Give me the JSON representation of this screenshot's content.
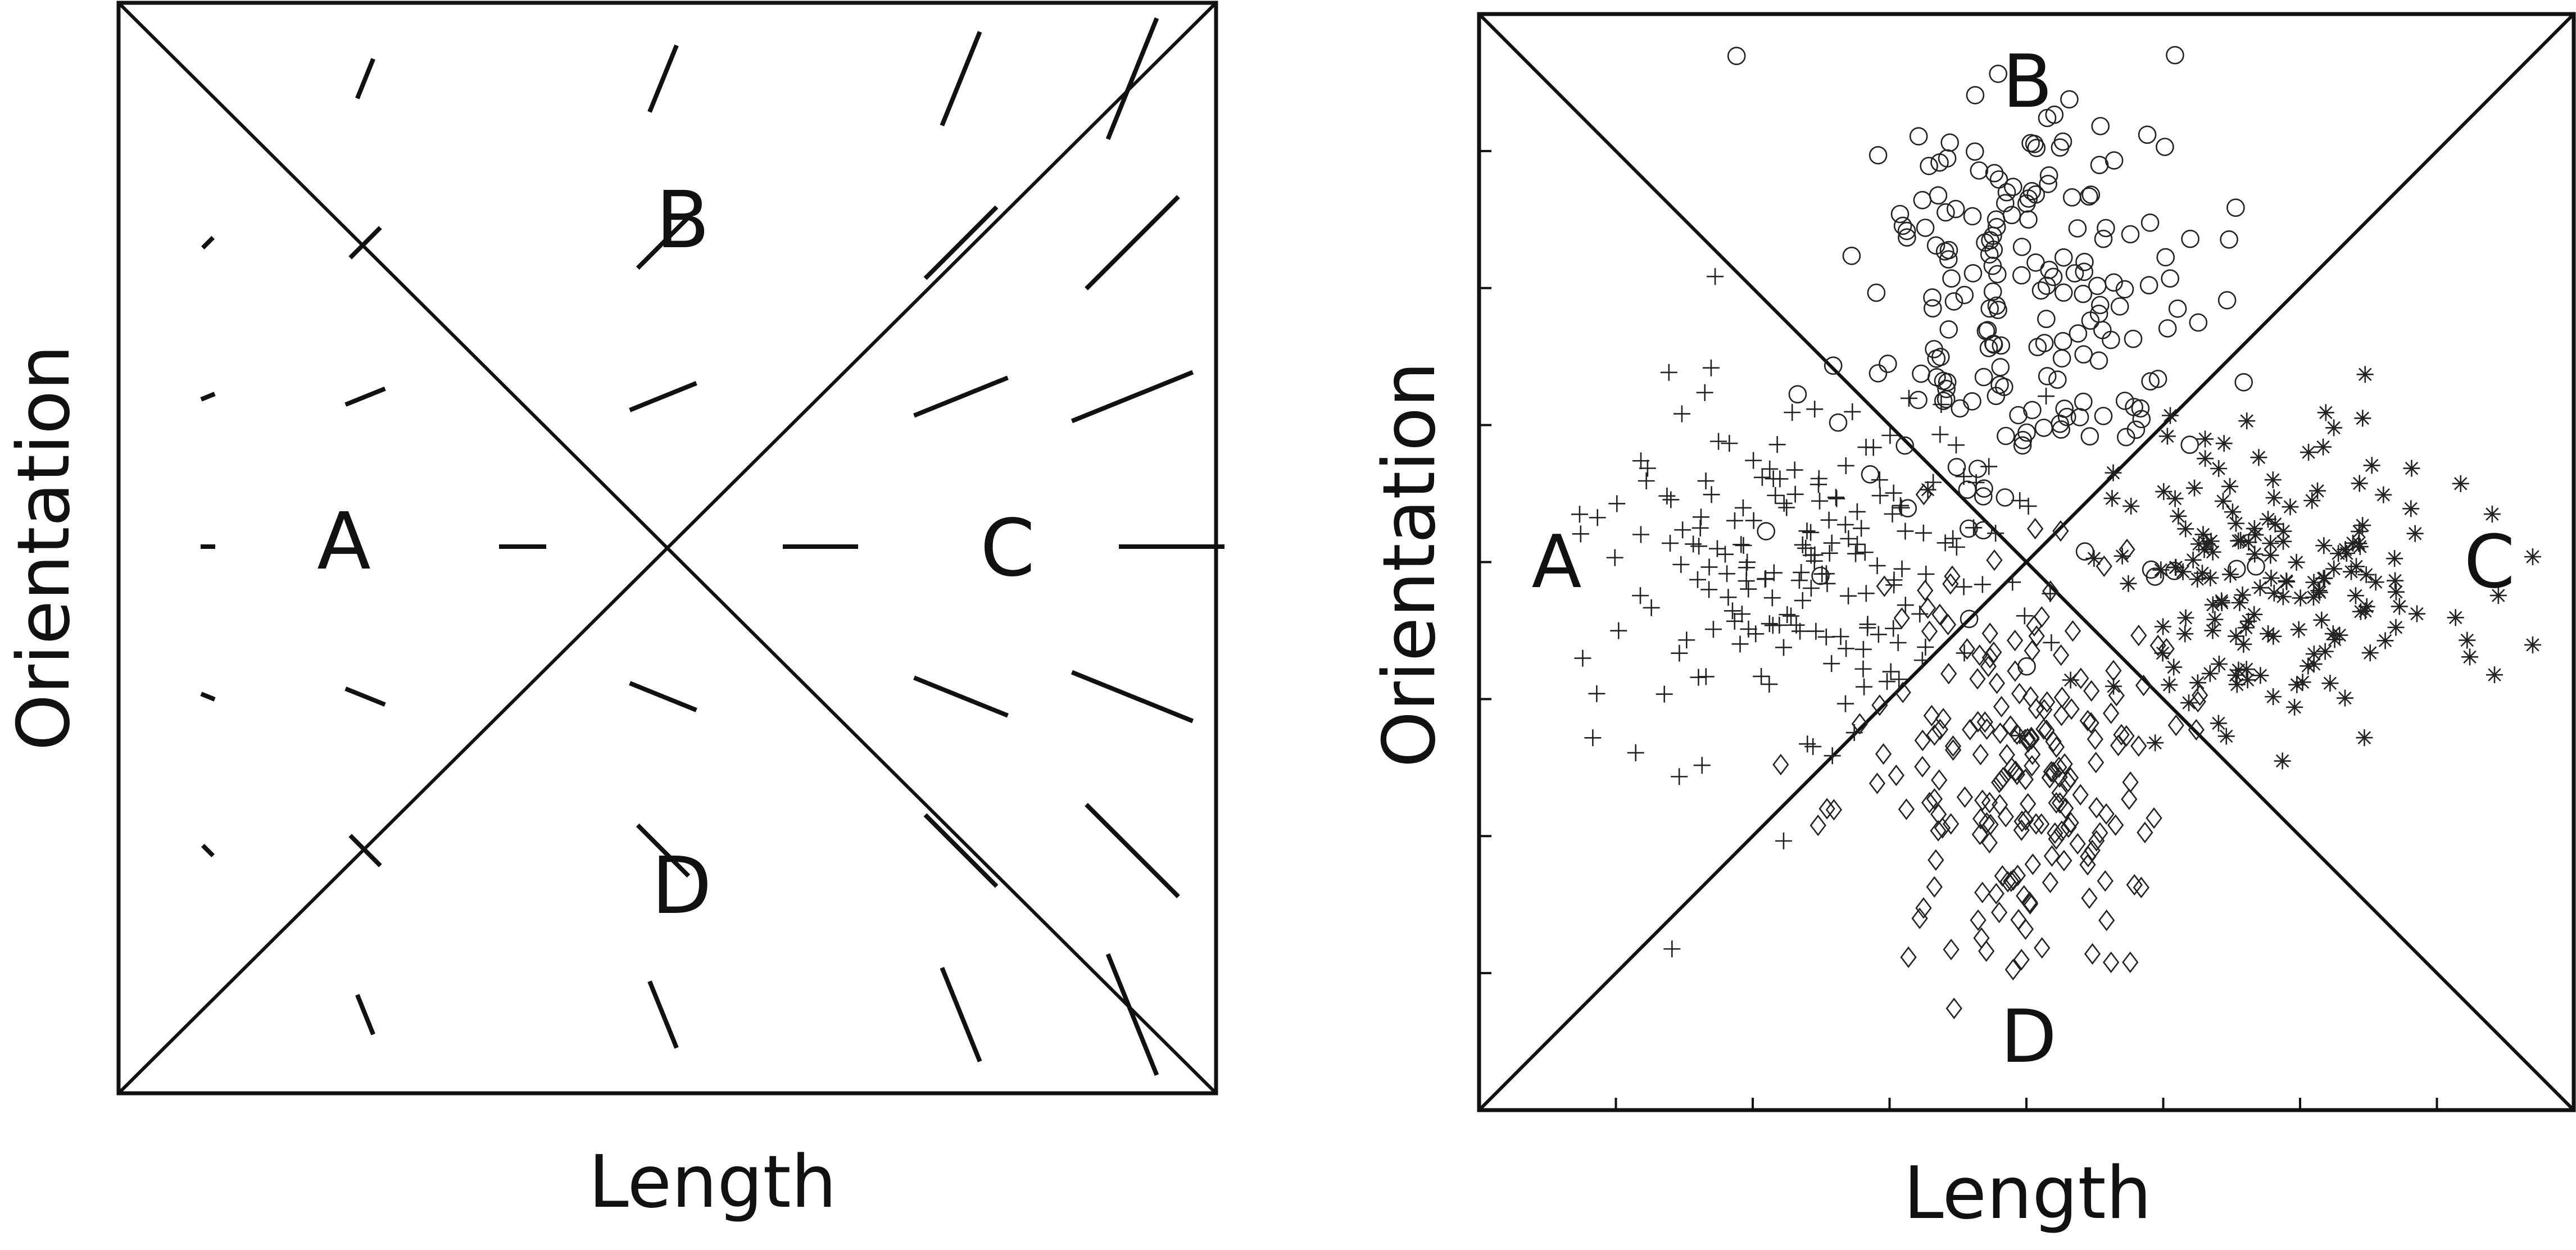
{
  "panels": [
    {
      "id": "left",
      "xlabel": "Length",
      "ylabel": "Orientation",
      "regions": {
        "A": "A",
        "B": "B",
        "C": "C",
        "D": "D"
      }
    },
    {
      "id": "right",
      "xlabel": "Length",
      "ylabel": "Orientation",
      "regions": {
        "A": "A",
        "B": "B",
        "C": "C",
        "D": "D"
      }
    }
  ],
  "chart_data": {
    "type": "scatter",
    "title": "",
    "xlabel": "Length",
    "ylabel": "Orientation",
    "xlim": [
      0,
      8
    ],
    "ylim": [
      0,
      8
    ],
    "region_labels": [
      "A",
      "B",
      "C",
      "D"
    ],
    "grid": false,
    "legend": "none",
    "series": [
      {
        "marker": "circle",
        "region": "B",
        "center": [
          4.0,
          5.8
        ],
        "spread": [
          0.65,
          0.9
        ],
        "count": 200
      },
      {
        "marker": "plus",
        "region": "A",
        "center": [
          2.4,
          4.0
        ],
        "spread": [
          0.8,
          0.6
        ],
        "count": 190
      },
      {
        "marker": "asterisk",
        "region": "C",
        "center": [
          5.9,
          3.9
        ],
        "spread": [
          0.75,
          0.6
        ],
        "count": 170
      },
      {
        "marker": "diamond",
        "region": "D",
        "center": [
          4.0,
          2.5
        ],
        "spread": [
          0.55,
          0.75
        ],
        "count": 200
      }
    ]
  }
}
